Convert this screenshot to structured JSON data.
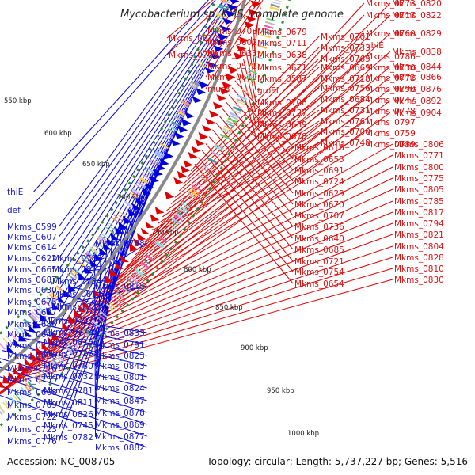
{
  "title": "Mycobacterium sp. KMS, complete genome",
  "footer": {
    "accession": "Accession: NC_008705",
    "topology": "Topology: circular; Length: 5,737,227 bp; Genes: 5,516"
  },
  "colors": {
    "forward": "#e00000",
    "reverse": "#0000e0",
    "backbone": "#8a8a8a",
    "dots": "#2c8c2c"
  },
  "tick_labels": [
    "550 kbp",
    "600 kbp",
    "650 kbp",
    "700 kbp",
    "750 kbp",
    "800 kbp",
    "850 kbp",
    "900 kbp",
    "950 kbp",
    "1000 kbp"
  ],
  "right_labels": [
    "Mkms_0672",
    "Mkms_0709",
    "Mkms_0703",
    "Mkms_0602",
    "Mkms_0633",
    "Mkms_0571",
    "Mkms_0610",
    "murB",
    "Mkms_0679",
    "Mkms_0711",
    "Mkms_0638",
    "Mkms_0671",
    "Mkms_0587",
    "groEL",
    "Mkms_0708",
    "Mkms_0737",
    "Mkms_0639",
    "Mkms_0678",
    "Mkms_0616",
    "Mkms_0655",
    "Mkms_0691",
    "Mkms_0724",
    "Mkms_0629",
    "Mkms_0670",
    "Mkms_0707",
    "Mkms_0736",
    "Mkms_0640",
    "Mkms_0685",
    "Mkms_0721",
    "Mkms_0754",
    "Mkms_0654",
    "Mkms_0701",
    "Mkms_0733",
    "Mkms_0765",
    "Mkms_0669",
    "Mkms_0718",
    "Mkms_0756",
    "Mkms_0684",
    "Mkms_0731",
    "Mkms_0761",
    "Mkms_0700",
    "Mkms_0748",
    "Mkms_0773",
    "Mkms_0717",
    "Mkms_0760",
    "ubiE",
    "Mkms_0786",
    "Mkms_0730",
    "Mkms_0772",
    "Mkms_0790",
    "Mkms_0747",
    "Mkms_0778",
    "Mkms_0797",
    "Mkms_0759",
    "Mkms_0789",
    "Mkms_0806",
    "Mkms_0771",
    "Mkms_0800",
    "Mkms_0775",
    "Mkms_0805",
    "Mkms_0785",
    "Mkms_0817",
    "Mkms_0794",
    "Mkms_0821",
    "Mkms_0804",
    "Mkms_0828",
    "Mkms_0810",
    "Mkms_0830",
    "Mkms_0820",
    "Mkms_0822",
    "Mkms_0829",
    "Mkms_0838",
    "Mkms_0844",
    "Mkms_0866",
    "Mkms_0876",
    "Mkms_0892",
    "Mkms_0904"
  ],
  "left_labels": [
    "thiE",
    "def",
    "Mkms_0599",
    "Mkms_0607",
    "Mkms_0614",
    "Mkms_0622",
    "Mkms_0665",
    "Mkms_0687",
    "Mkms_0630",
    "Mkms_0675",
    "Mkms_0637",
    "Mkms_0686",
    "Mkms_0646",
    "Mkms_0710",
    "Mkms_0660",
    "Mkms_0716",
    "Mkms_0755",
    "Mkms_0668",
    "Mkms_0769",
    "Mkms_0722",
    "Mkms_0723",
    "Mkms_0776",
    "Mkms_0727",
    "Mkms_0779",
    "Mkms_0816",
    "Mkms_0728",
    "Mkms_0780",
    "Mkms_0732",
    "Mkms_0781",
    "Mkms_0811",
    "Mkms_0826",
    "Mkms_0745",
    "Mkms_0782",
    "Mkms_0783",
    "Mkms_0812",
    "Mkms_0784",
    "Mkms_0814",
    "Mkms_0832",
    "Mkms_0788",
    "Mkms_0815",
    "Mkms_0833",
    "Mkms_0791",
    "Mkms_0823",
    "Mkms_0843",
    "Mkms_0801",
    "Mkms_0824",
    "Mkms_0847",
    "Mkms_0878",
    "Mkms_0869",
    "Mkms_0877",
    "Mkms_0882"
  ]
}
